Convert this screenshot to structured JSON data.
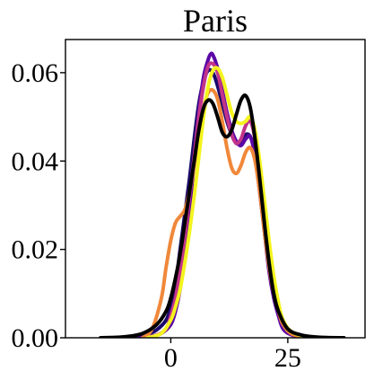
{
  "chart_data": {
    "type": "line",
    "title": "Paris",
    "xlabel": "",
    "ylabel": "",
    "xlim": [
      -22.5,
      41.5
    ],
    "ylim": [
      0,
      0.0675
    ],
    "x_ticks": [
      {
        "value": 0,
        "label": "0"
      },
      {
        "value": 25,
        "label": "25"
      }
    ],
    "y_ticks": [
      {
        "value": 0.0,
        "label": "0.00"
      },
      {
        "value": 0.02,
        "label": "0.02"
      },
      {
        "value": 0.04,
        "label": "0.04"
      },
      {
        "value": 0.06,
        "label": "0.06"
      }
    ],
    "grid": false,
    "legend": "none",
    "series": [
      {
        "color": "#1a0a6b",
        "points": [
          [
            -12,
            0
          ],
          [
            -8,
            0.0002
          ],
          [
            -5,
            0.0008
          ],
          [
            -3,
            0.0018
          ],
          [
            -1,
            0.004
          ],
          [
            0,
            0.007
          ],
          [
            1,
            0.012
          ],
          [
            2,
            0.02
          ],
          [
            3,
            0.028
          ],
          [
            4,
            0.036
          ],
          [
            5,
            0.045
          ],
          [
            6,
            0.053
          ],
          [
            7,
            0.058
          ],
          [
            8,
            0.0605
          ],
          [
            9,
            0.06
          ],
          [
            10,
            0.057
          ],
          [
            11,
            0.053
          ],
          [
            12,
            0.049
          ],
          [
            13,
            0.046
          ],
          [
            14,
            0.044
          ],
          [
            15,
            0.0445
          ],
          [
            16,
            0.046
          ],
          [
            17,
            0.0455
          ],
          [
            18,
            0.042
          ],
          [
            19,
            0.035
          ],
          [
            20,
            0.026
          ],
          [
            21,
            0.018
          ],
          [
            22,
            0.011
          ],
          [
            23,
            0.006
          ],
          [
            24,
            0.003
          ],
          [
            26,
            0.001
          ],
          [
            29,
            0.0002
          ],
          [
            34,
            0
          ]
        ]
      },
      {
        "color": "#5c07a6",
        "points": [
          [
            -7,
            0
          ],
          [
            -4,
            0.0003
          ],
          [
            -2,
            0.001
          ],
          [
            0,
            0.003
          ],
          [
            1,
            0.006
          ],
          [
            2,
            0.011
          ],
          [
            3,
            0.019
          ],
          [
            4,
            0.029
          ],
          [
            5,
            0.04
          ],
          [
            6,
            0.051
          ],
          [
            7,
            0.059
          ],
          [
            8,
            0.063
          ],
          [
            8.5,
            0.0642
          ],
          [
            9,
            0.064
          ],
          [
            10,
            0.061
          ],
          [
            11,
            0.056
          ],
          [
            12,
            0.051
          ],
          [
            13,
            0.047
          ],
          [
            14,
            0.0445
          ],
          [
            15,
            0.0435
          ],
          [
            16,
            0.045
          ],
          [
            17,
            0.0455
          ],
          [
            18,
            0.041
          ],
          [
            19,
            0.033
          ],
          [
            20,
            0.024
          ],
          [
            21,
            0.015
          ],
          [
            22,
            0.009
          ],
          [
            23,
            0.005
          ],
          [
            24,
            0.002
          ],
          [
            26,
            0.0006
          ],
          [
            30,
            0
          ]
        ]
      },
      {
        "color": "#c2348a",
        "points": [
          [
            -6,
            0
          ],
          [
            -3,
            0.0006
          ],
          [
            -1,
            0.002
          ],
          [
            0,
            0.005
          ],
          [
            1,
            0.009
          ],
          [
            2,
            0.015
          ],
          [
            3,
            0.023
          ],
          [
            4,
            0.032
          ],
          [
            5,
            0.041
          ],
          [
            6,
            0.05
          ],
          [
            7,
            0.057
          ],
          [
            8,
            0.0615
          ],
          [
            9,
            0.062
          ],
          [
            10,
            0.06
          ],
          [
            11,
            0.055
          ],
          [
            12,
            0.05
          ],
          [
            13,
            0.046
          ],
          [
            14,
            0.044
          ],
          [
            15,
            0.045
          ],
          [
            16,
            0.048
          ],
          [
            17,
            0.049
          ],
          [
            18,
            0.045
          ],
          [
            19,
            0.037
          ],
          [
            20,
            0.027
          ],
          [
            21,
            0.018
          ],
          [
            22,
            0.011
          ],
          [
            23,
            0.006
          ],
          [
            24,
            0.003
          ],
          [
            26,
            0.0008
          ],
          [
            30,
            0
          ]
        ]
      },
      {
        "color": "#f0883a",
        "points": [
          [
            -6,
            0
          ],
          [
            -4,
            0.002
          ],
          [
            -2,
            0.009
          ],
          [
            -1,
            0.016
          ],
          [
            0,
            0.022
          ],
          [
            1,
            0.026
          ],
          [
            2,
            0.0275
          ],
          [
            3,
            0.029
          ],
          [
            4,
            0.033
          ],
          [
            5,
            0.039
          ],
          [
            6,
            0.046
          ],
          [
            7,
            0.052
          ],
          [
            8,
            0.0555
          ],
          [
            9,
            0.056
          ],
          [
            10,
            0.054
          ],
          [
            11,
            0.049
          ],
          [
            12,
            0.043
          ],
          [
            13,
            0.0385
          ],
          [
            14,
            0.0372
          ],
          [
            15,
            0.039
          ],
          [
            16,
            0.042
          ],
          [
            17,
            0.043
          ],
          [
            18,
            0.04
          ],
          [
            19,
            0.033
          ],
          [
            20,
            0.024
          ],
          [
            21,
            0.016
          ],
          [
            22,
            0.01
          ],
          [
            23,
            0.006
          ],
          [
            24,
            0.003
          ],
          [
            26,
            0.0008
          ],
          [
            30,
            0
          ]
        ]
      },
      {
        "color": "#f4f41e",
        "points": [
          [
            -5,
            0
          ],
          [
            -2,
            0.001
          ],
          [
            0,
            0.004
          ],
          [
            1,
            0.007
          ],
          [
            2,
            0.011
          ],
          [
            3,
            0.017
          ],
          [
            4,
            0.024
          ],
          [
            5,
            0.032
          ],
          [
            6,
            0.041
          ],
          [
            7,
            0.05
          ],
          [
            8,
            0.057
          ],
          [
            9,
            0.0605
          ],
          [
            10,
            0.061
          ],
          [
            11,
            0.059
          ],
          [
            12,
            0.055
          ],
          [
            13,
            0.051
          ],
          [
            14,
            0.049
          ],
          [
            15,
            0.0485
          ],
          [
            16,
            0.049
          ],
          [
            17,
            0.05
          ],
          [
            18,
            0.047
          ],
          [
            19,
            0.04
          ],
          [
            20,
            0.031
          ],
          [
            21,
            0.022
          ],
          [
            22,
            0.014
          ],
          [
            23,
            0.008
          ],
          [
            24,
            0.004
          ],
          [
            26,
            0.0012
          ],
          [
            30,
            0
          ]
        ]
      },
      {
        "color": "#000000",
        "points": [
          [
            -15,
            0
          ],
          [
            -10,
            0.0002
          ],
          [
            -6,
            0.001
          ],
          [
            -3,
            0.003
          ],
          [
            -1,
            0.006
          ],
          [
            0,
            0.009
          ],
          [
            1,
            0.0135
          ],
          [
            2,
            0.019
          ],
          [
            3,
            0.026
          ],
          [
            4,
            0.033
          ],
          [
            5,
            0.04
          ],
          [
            6,
            0.047
          ],
          [
            7,
            0.052
          ],
          [
            8,
            0.0538
          ],
          [
            9,
            0.053
          ],
          [
            10,
            0.05
          ],
          [
            11,
            0.0465
          ],
          [
            12,
            0.0455
          ],
          [
            13,
            0.047
          ],
          [
            14,
            0.0505
          ],
          [
            15,
            0.0538
          ],
          [
            16,
            0.0548
          ],
          [
            17,
            0.052
          ],
          [
            18,
            0.045
          ],
          [
            19,
            0.036
          ],
          [
            20,
            0.026
          ],
          [
            21,
            0.017
          ],
          [
            22,
            0.01
          ],
          [
            23,
            0.006
          ],
          [
            25,
            0.002
          ],
          [
            28,
            0.0006
          ],
          [
            32,
            0.0001
          ],
          [
            37,
            0
          ]
        ]
      }
    ]
  }
}
